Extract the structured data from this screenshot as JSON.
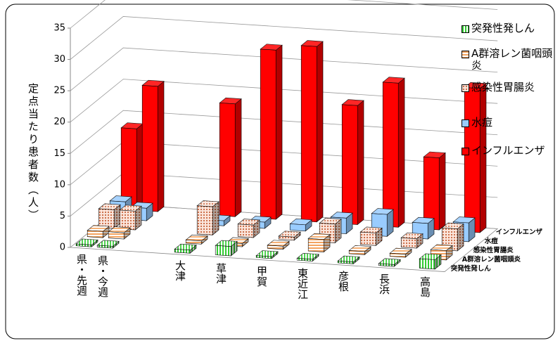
{
  "chart_data": {
    "type": "bar3d",
    "y_label": "定点当たり患者数（人）",
    "categories": [
      "県・先週",
      "県・今週",
      "大津",
      "草津",
      "甲賀",
      "東近江",
      "彦根",
      "長浜",
      "高島"
    ],
    "series": [
      {
        "name": "突発性発しん",
        "color": "#33cc33",
        "values": [
          0.3,
          0.3,
          0.5,
          1.5,
          0.3,
          0.3,
          0.3,
          0.3,
          1.5
        ]
      },
      {
        "name": "A群溶レン菌咽頭炎",
        "color": "#f4a460",
        "values": [
          1,
          1,
          0.5,
          0.5,
          0.5,
          2,
          0.5,
          0.5,
          1.5
        ]
      },
      {
        "name": "感染性胃腸炎",
        "color": "#c8643c",
        "values": [
          3,
          3,
          4.5,
          2,
          0.5,
          3,
          2,
          1.5,
          3.5
        ]
      },
      {
        "name": "水痘",
        "color": "#99ccff",
        "values": [
          2.8,
          2,
          0.8,
          1,
          1,
          2.5,
          3.5,
          2.5,
          3
        ]
      },
      {
        "name": "インフルエンザ",
        "color": "#ff0000",
        "values": [
          13,
          20,
          18,
          27,
          28,
          19,
          23,
          11.5,
          23
        ]
      }
    ],
    "ylim": [
      0,
      35
    ],
    "yticks": [
      0,
      5,
      10,
      15,
      20,
      25,
      30,
      35
    ],
    "grid": true
  }
}
